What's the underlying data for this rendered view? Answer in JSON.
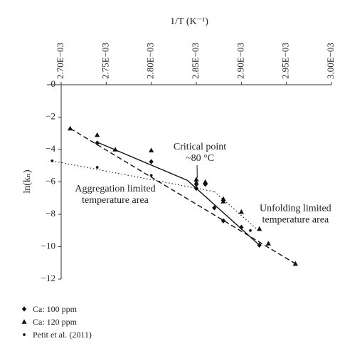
{
  "chart_data": {
    "type": "scatter",
    "xlabel": "1/T (K⁻¹)",
    "ylabel": "ln(kₙ)",
    "x_ticks": [
      "2.70E−03",
      "2.75E−03",
      "2.80E−03",
      "2.85E−03",
      "2.90E−03",
      "2.95E−03",
      "3.00E−03"
    ],
    "x_tick_values": [
      0.0027,
      0.00275,
      0.0028,
      0.00285,
      0.0029,
      0.00295,
      0.003
    ],
    "y_ticks": [
      "0",
      "−2",
      "−4",
      "−6",
      "−8",
      "−10",
      "−12"
    ],
    "y_tick_values": [
      0,
      -2,
      -4,
      -6,
      -8,
      -10,
      -12
    ],
    "xlim": [
      0.0027,
      0.003
    ],
    "ylim": [
      -12,
      0
    ],
    "x_axis_position": "top",
    "grid": false,
    "legend_position": "bottom-left",
    "series": [
      {
        "name": "Ca: 100 ppm",
        "marker": "diamond",
        "line": "solid",
        "points": [
          [
            0.00274,
            -3.6
          ],
          [
            0.0028,
            -4.75
          ],
          [
            0.00285,
            -6.4
          ],
          [
            0.00286,
            -6.15
          ],
          [
            0.00287,
            -7.6
          ],
          [
            0.00288,
            -8.4
          ],
          [
            0.0029,
            -8.8
          ],
          [
            0.00292,
            -9.9
          ]
        ],
        "fit_segments": [
          [
            [
              0.00274,
              -3.55
            ],
            [
              0.00284,
              -5.9
            ]
          ],
          [
            [
              0.00284,
              -5.9
            ],
            [
              0.00292,
              -9.9
            ]
          ]
        ]
      },
      {
        "name": "Ca: 120 ppm",
        "marker": "triangle",
        "line": "dashed",
        "points": [
          [
            0.00271,
            -2.7
          ],
          [
            0.00274,
            -3.1
          ],
          [
            0.00276,
            -4.0
          ],
          [
            0.0028,
            -4.05
          ],
          [
            0.00285,
            -5.85
          ],
          [
            0.00285,
            -6.05
          ],
          [
            0.00286,
            -6.0
          ],
          [
            0.00288,
            -7.05
          ],
          [
            0.00288,
            -7.2
          ],
          [
            0.0029,
            -7.85
          ],
          [
            0.00292,
            -8.9
          ],
          [
            0.00293,
            -9.8
          ],
          [
            0.00296,
            -11.05
          ]
        ],
        "fit_segments": [
          [
            [
              0.00271,
              -2.7
            ],
            [
              0.00296,
              -11.05
            ]
          ]
        ]
      },
      {
        "name": "Petit et al. (2011)",
        "marker": "circle",
        "line": "dotted",
        "points": [
          [
            0.00269,
            -4.7
          ],
          [
            0.00274,
            -5.1
          ],
          [
            0.0028,
            -5.6
          ],
          [
            0.00285,
            -6.2
          ],
          [
            0.00291,
            -9.0
          ]
        ],
        "fit_segments": [
          [
            [
              0.00269,
              -4.7
            ],
            [
              0.00287,
              -6.6
            ]
          ],
          [
            [
              0.00287,
              -6.6
            ],
            [
              0.00292,
              -9.05
            ]
          ]
        ]
      }
    ],
    "annotations": [
      {
        "lines": [
          "Critical point",
          "~80 °C"
        ],
        "x": 0.002854,
        "y": -4.0,
        "pointer_to": [
          0.002851,
          -5.75
        ]
      },
      {
        "lines": [
          "Aggregation limited",
          "temperature area"
        ],
        "x": 0.00276,
        "y": -6.6,
        "pointer_to": null
      },
      {
        "lines": [
          "Unfolding limited",
          "temperature area"
        ],
        "x": 0.00296,
        "y": -7.8,
        "pointer_to": null
      }
    ]
  }
}
